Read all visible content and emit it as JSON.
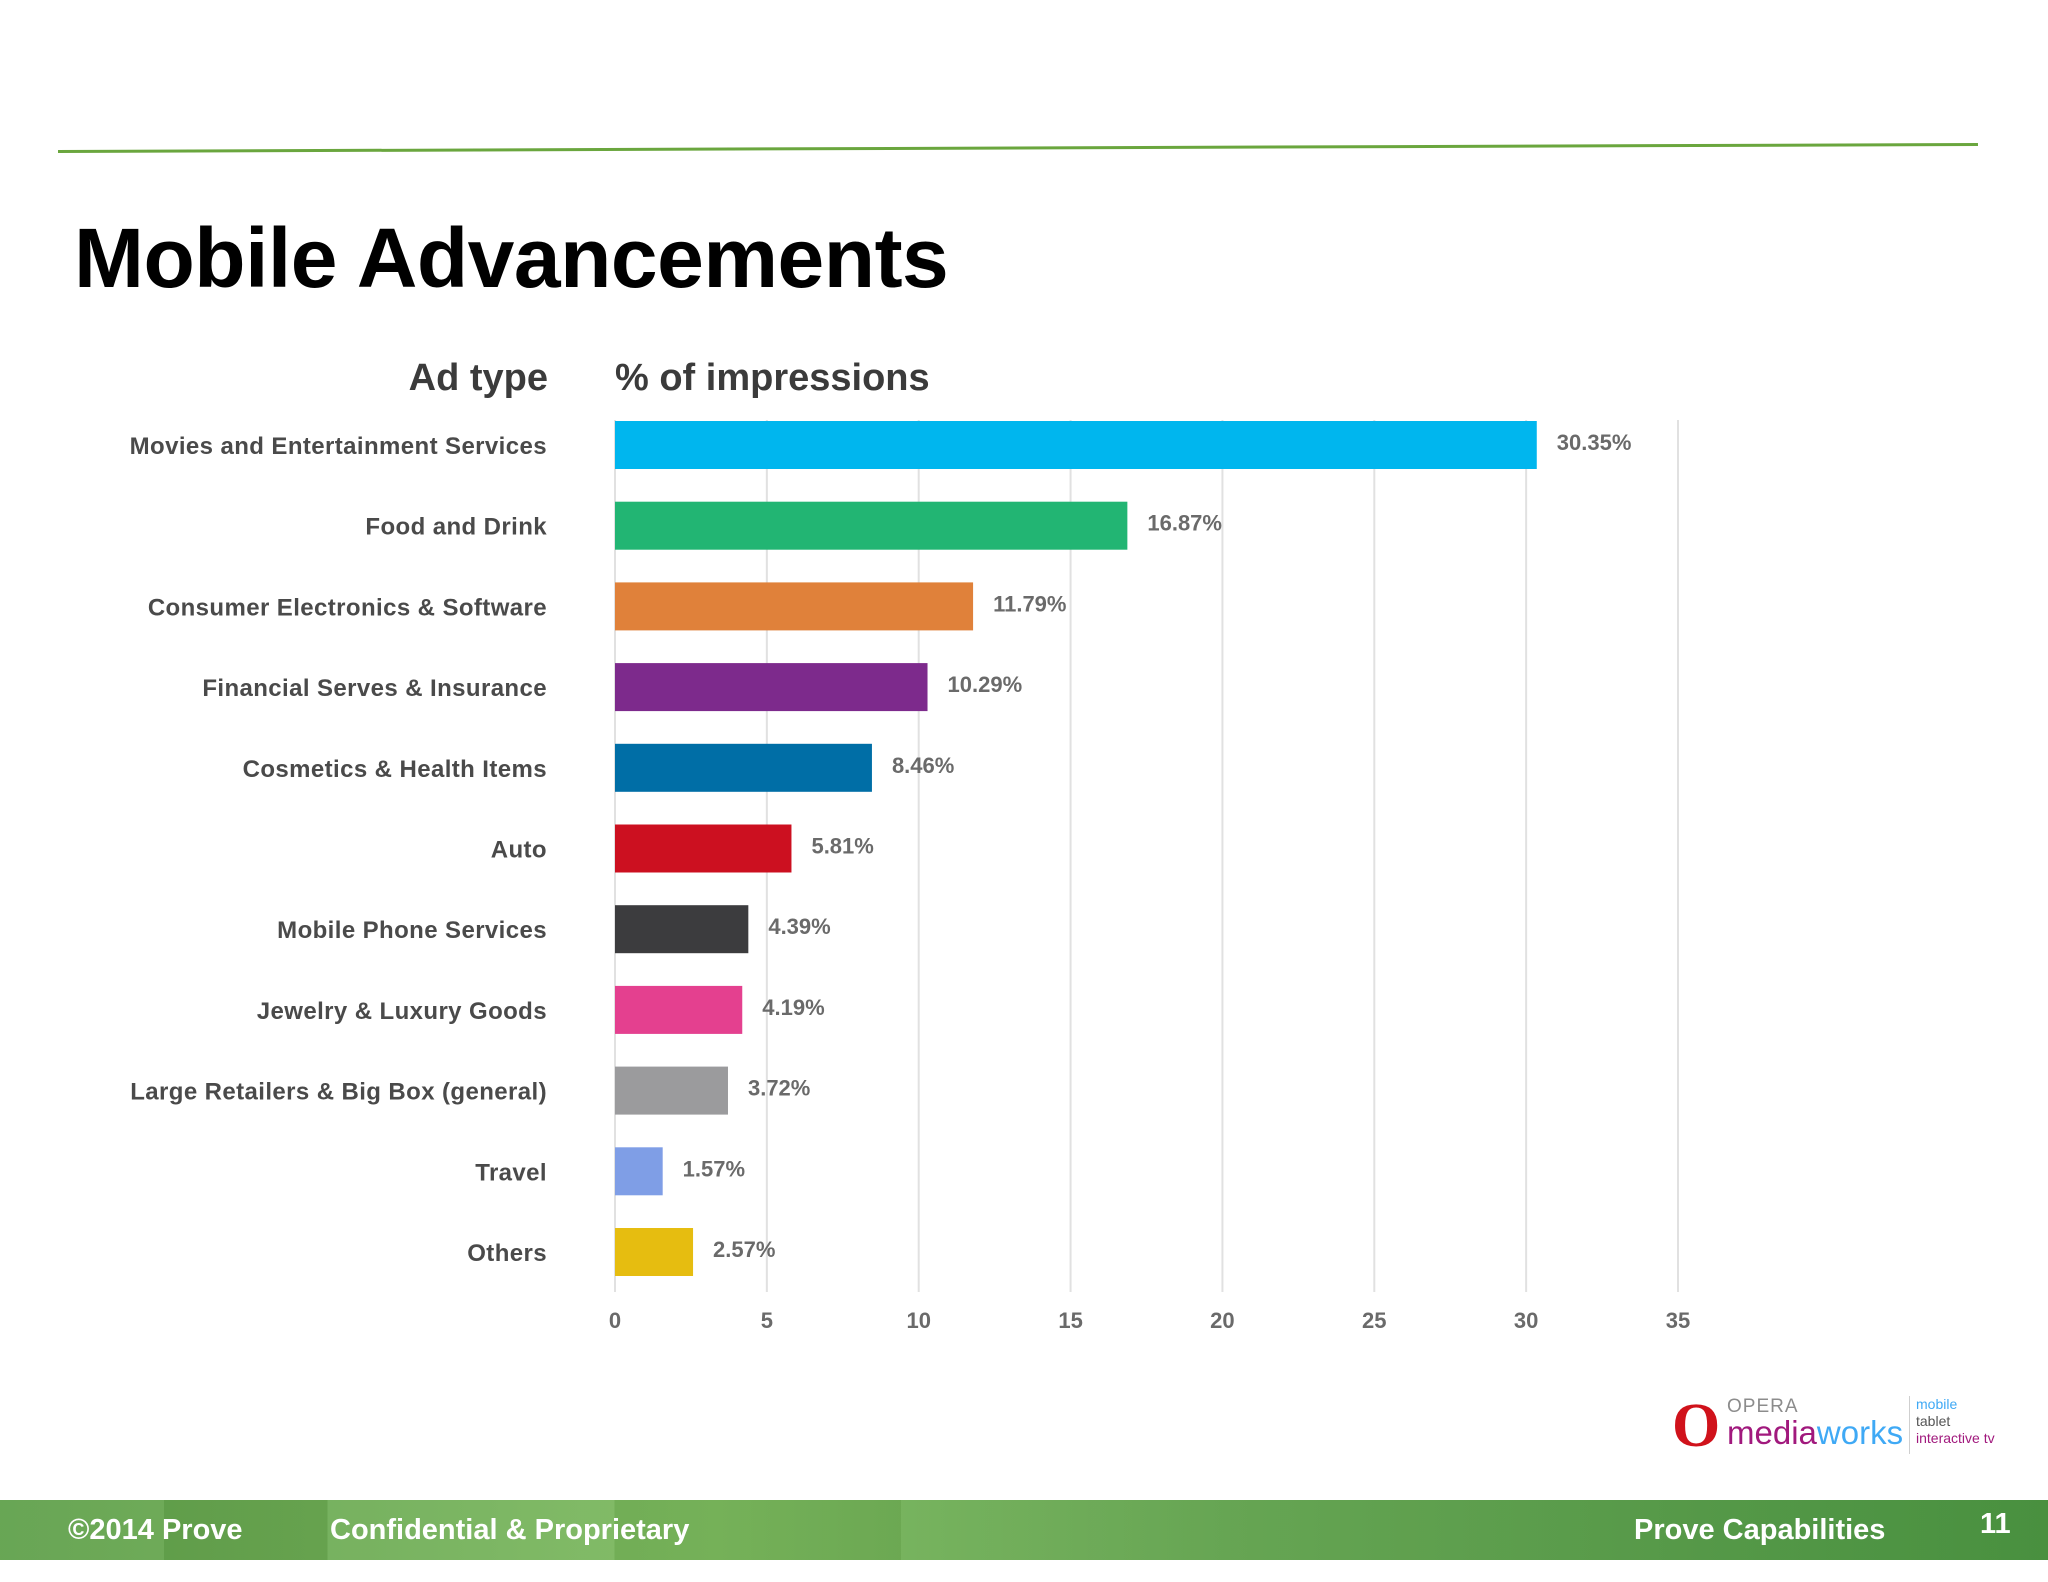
{
  "slide": {
    "title": "Mobile Advancements"
  },
  "footer": {
    "copyright": "©2014 Prove",
    "confidential": "Confidential & Proprietary",
    "section": "Prove Capabilities",
    "page_number": "11"
  },
  "logo": {
    "opera": "OPERA",
    "media": "media",
    "works": "works",
    "tags": [
      "mobile",
      "tablet",
      "interactive tv"
    ]
  },
  "colors": {
    "rule": "#6aa63e",
    "footer_green": "#5fa04a",
    "logo_red": "#d0121b"
  },
  "chart_data": {
    "type": "bar",
    "orientation": "horizontal",
    "category_header": "Ad type",
    "value_header": "% of impressions",
    "categories": [
      "Movies and Entertainment Services",
      "Food and Drink",
      "Consumer Electronics & Software",
      "Financial Serves & Insurance",
      "Cosmetics & Health Items",
      "Auto",
      "Mobile Phone Services",
      "Jewelry & Luxury Goods",
      "Large Retailers & Big Box (general)",
      "Travel",
      "Others"
    ],
    "values": [
      30.35,
      16.87,
      11.79,
      10.29,
      8.46,
      5.81,
      4.39,
      4.19,
      3.72,
      1.57,
      2.57
    ],
    "value_labels": [
      "30.35%",
      "16.87%",
      "11.79%",
      "10.29%",
      "8.46%",
      "5.81%",
      "4.39%",
      "4.19%",
      "3.72%",
      "1.57%",
      "2.57%"
    ],
    "bar_colors": [
      "#00b6ee",
      "#22b573",
      "#e0813a",
      "#7d2a8c",
      "#006ea6",
      "#cc1020",
      "#3c3c3e",
      "#e4408f",
      "#9b9b9d",
      "#7f9ee6",
      "#e6bd10"
    ],
    "xlim": [
      0,
      35
    ],
    "xticks": [
      0,
      5,
      10,
      15,
      20,
      25,
      30,
      35
    ],
    "grid": true,
    "legend": "none"
  }
}
